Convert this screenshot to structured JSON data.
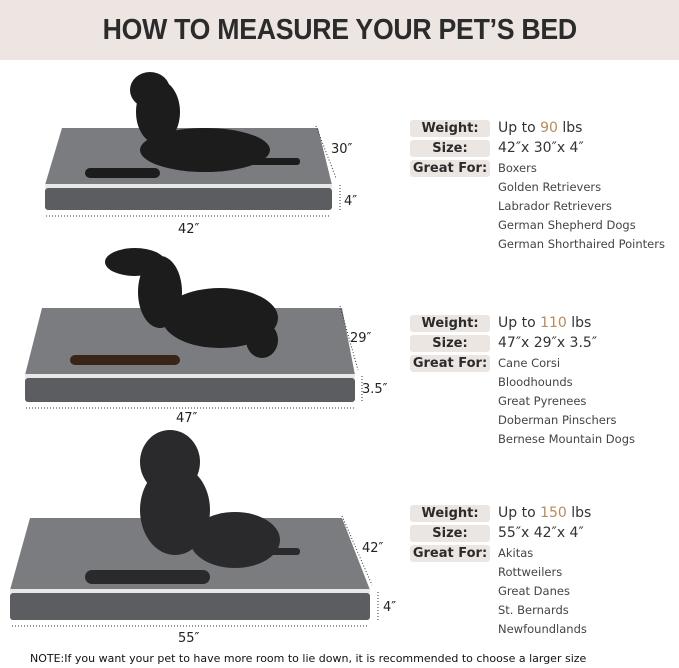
{
  "header": {
    "title": "HOW TO MEASURE YOUR PET’S BED"
  },
  "labels": {
    "weight": "Weight:",
    "size": "Size:",
    "great_for": "Great For:"
  },
  "beds": [
    {
      "weight_prefix": "Up to ",
      "weight_value": "90",
      "weight_unit": " lbs",
      "size": "42″x 30″x 4″",
      "length": "42″",
      "width": "30″",
      "height": "4″",
      "breeds": [
        "Boxers",
        "Golden Retrievers",
        "Labrador Retrievers",
        "German Shepherd Dogs",
        "German Shorthaired Pointers"
      ]
    },
    {
      "weight_prefix": "Up to ",
      "weight_value": "110",
      "weight_unit": " lbs",
      "size": "47″x 29″x 3.5″",
      "length": "47″",
      "width": "29″",
      "height": "3.5″",
      "breeds": [
        "Cane Corsi",
        "Bloodhounds",
        "Great Pyrenees",
        "Doberman Pinschers",
        "Bernese Mountain Dogs"
      ]
    },
    {
      "weight_prefix": "Up to ",
      "weight_value": "150",
      "weight_unit": " lbs",
      "size": "55″x 42″x 4″",
      "length": "55″",
      "width": "42″",
      "height": "4″",
      "breeds": [
        "Akitas",
        "Rottweilers",
        "Great Danes",
        "St. Bernards",
        "Newfoundlands"
      ]
    }
  ],
  "note": "NOTE:If you want your pet to have more room to lie down, it is recommended to choose a larger size",
  "colors": {
    "header_bg": "#ede5e2",
    "accent": "#b88a5a",
    "bed": "#6f7175"
  }
}
